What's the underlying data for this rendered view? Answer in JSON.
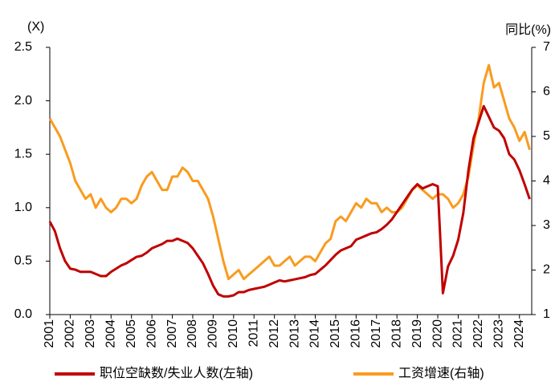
{
  "chart_data": {
    "type": "line",
    "y_label": "(X)",
    "y2_label": "同比(%)",
    "x": [
      2001.0,
      2001.25,
      2001.5,
      2001.75,
      2002.0,
      2002.25,
      2002.5,
      2002.75,
      2003.0,
      2003.25,
      2003.5,
      2003.75,
      2004.0,
      2004.25,
      2004.5,
      2004.75,
      2005.0,
      2005.25,
      2005.5,
      2005.75,
      2006.0,
      2006.25,
      2006.5,
      2006.75,
      2007.0,
      2007.25,
      2007.5,
      2007.75,
      2008.0,
      2008.25,
      2008.5,
      2008.75,
      2009.0,
      2009.25,
      2009.5,
      2009.75,
      2010.0,
      2010.25,
      2010.5,
      2010.75,
      2011.0,
      2011.25,
      2011.5,
      2011.75,
      2012.0,
      2012.25,
      2012.5,
      2012.75,
      2013.0,
      2013.25,
      2013.5,
      2013.75,
      2014.0,
      2014.25,
      2014.5,
      2014.75,
      2015.0,
      2015.25,
      2015.5,
      2015.75,
      2016.0,
      2016.25,
      2016.5,
      2016.75,
      2017.0,
      2017.25,
      2017.5,
      2017.75,
      2018.0,
      2018.25,
      2018.5,
      2018.75,
      2019.0,
      2019.25,
      2019.5,
      2019.75,
      2020.0,
      2020.25,
      2020.5,
      2020.75,
      2021.0,
      2021.25,
      2021.5,
      2021.75,
      2022.0,
      2022.25,
      2022.5,
      2022.75,
      2023.0,
      2023.25,
      2023.5,
      2023.75,
      2024.0,
      2024.25,
      2024.5
    ],
    "series": [
      {
        "name": "工资增速(右轴)",
        "color": "#f99b1f",
        "axis": "y2",
        "values": [
          5.4,
          5.2,
          5.0,
          4.7,
          4.4,
          4.0,
          3.8,
          3.6,
          3.7,
          3.4,
          3.6,
          3.4,
          3.3,
          3.4,
          3.6,
          3.6,
          3.5,
          3.6,
          3.9,
          4.1,
          4.2,
          4.0,
          3.8,
          3.8,
          4.1,
          4.1,
          4.3,
          4.2,
          4.0,
          4.0,
          3.8,
          3.6,
          3.2,
          2.7,
          2.2,
          1.8,
          1.9,
          2.0,
          1.8,
          1.9,
          2.0,
          2.1,
          2.2,
          2.3,
          2.1,
          2.1,
          2.2,
          2.3,
          2.1,
          2.2,
          2.3,
          2.3,
          2.2,
          2.4,
          2.6,
          2.7,
          3.1,
          3.2,
          3.1,
          3.3,
          3.5,
          3.4,
          3.6,
          3.5,
          3.5,
          3.3,
          3.4,
          3.3,
          3.3,
          3.4,
          3.6,
          3.8,
          3.9,
          3.8,
          3.7,
          3.6,
          3.7,
          3.7,
          3.6,
          3.4,
          3.5,
          3.7,
          4.1,
          4.8,
          5.4,
          6.2,
          6.6,
          6.1,
          6.2,
          5.8,
          5.4,
          5.2,
          4.9,
          5.1,
          4.7
        ]
      },
      {
        "name": "职位空缺数/失业人数(左轴)",
        "color": "#c00000",
        "values": [
          0.87,
          0.78,
          0.62,
          0.5,
          0.43,
          0.42,
          0.4,
          0.4,
          0.4,
          0.38,
          0.36,
          0.36,
          0.4,
          0.43,
          0.46,
          0.48,
          0.51,
          0.54,
          0.55,
          0.58,
          0.62,
          0.64,
          0.66,
          0.69,
          0.69,
          0.71,
          0.69,
          0.67,
          0.62,
          0.55,
          0.48,
          0.38,
          0.27,
          0.19,
          0.17,
          0.17,
          0.18,
          0.21,
          0.21,
          0.23,
          0.24,
          0.25,
          0.26,
          0.28,
          0.3,
          0.32,
          0.31,
          0.32,
          0.33,
          0.34,
          0.35,
          0.37,
          0.38,
          0.42,
          0.46,
          0.51,
          0.56,
          0.6,
          0.62,
          0.64,
          0.7,
          0.72,
          0.74,
          0.76,
          0.77,
          0.8,
          0.84,
          0.89,
          0.96,
          1.03,
          1.1,
          1.17,
          1.22,
          1.18,
          1.2,
          1.22,
          1.2,
          0.2,
          0.45,
          0.55,
          0.7,
          0.95,
          1.35,
          1.65,
          1.8,
          1.95,
          1.85,
          1.75,
          1.72,
          1.65,
          1.5,
          1.45,
          1.35,
          1.22,
          1.08
        ]
      }
    ],
    "xlim": [
      2001,
      2024.6
    ],
    "xticks": [
      2001,
      2002,
      2003,
      2004,
      2005,
      2006,
      2007,
      2008,
      2009,
      2010,
      2011,
      2012,
      2013,
      2014,
      2015,
      2016,
      2017,
      2018,
      2019,
      2020,
      2021,
      2022,
      2023,
      2024
    ],
    "ylim": [
      0,
      2.5
    ],
    "yticks": [
      {
        "value": 0,
        "label": "0.0"
      },
      {
        "value": 0.5,
        "label": "0.5"
      },
      {
        "value": 1,
        "label": "1.0"
      },
      {
        "value": 1.5,
        "label": "1.5"
      },
      {
        "value": 2,
        "label": "2.0"
      },
      {
        "value": 2.5,
        "label": "2.5"
      }
    ],
    "y2lim": [
      1,
      7
    ],
    "y2ticks": [
      1,
      2,
      3,
      4,
      5,
      6,
      7
    ],
    "legend": "bottom",
    "grid": false
  }
}
